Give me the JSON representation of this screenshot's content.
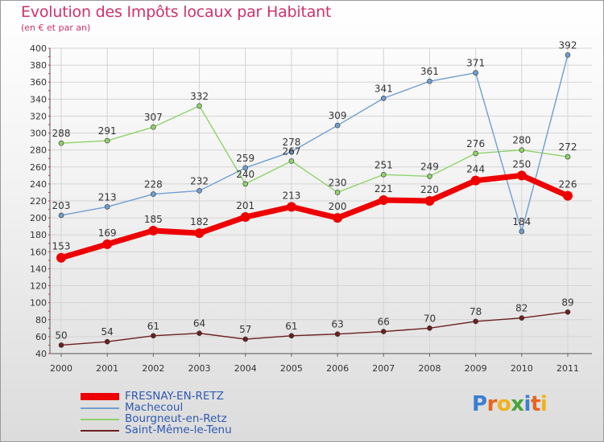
{
  "title": "Evolution des Impôts locaux par Habitant",
  "subtitle": "(en € et par an)",
  "logo": {
    "letters": [
      "P",
      "r",
      "o",
      "x",
      "i",
      "t",
      "i"
    ],
    "colors": [
      "#3a7fd0",
      "#e8641c",
      "#f0b21a",
      "#4aa33a",
      "#3a7fd0",
      "#e8641c",
      "#f0b21a"
    ]
  },
  "chart_data": {
    "type": "line",
    "title": "Evolution des Impôts locaux par Habitant",
    "subtitle": "(en € et par an)",
    "x": [
      "2000",
      "2001",
      "2002",
      "2003",
      "2004",
      "2005",
      "2006",
      "2007",
      "2008",
      "2009",
      "2010",
      "2011"
    ],
    "ylim": [
      40,
      400
    ],
    "yticks": [
      40,
      60,
      80,
      100,
      120,
      140,
      160,
      180,
      200,
      220,
      240,
      260,
      280,
      300,
      320,
      340,
      360,
      380,
      400
    ],
    "grid": true,
    "legend_position": "bottom-left",
    "series": [
      {
        "name": "Saint-Même-le-Tenu",
        "color": "#6b1f1f",
        "values": [
          50,
          54,
          61,
          64,
          57,
          61,
          63,
          66,
          70,
          78,
          82,
          89
        ]
      },
      {
        "name": "Bourgneut-en-Retz",
        "color": "#8fd36a",
        "values": [
          288,
          291,
          307,
          332,
          240,
          267,
          230,
          251,
          249,
          276,
          280,
          272
        ]
      },
      {
        "name": "Machecoul",
        "color": "#6f9ed0",
        "values": [
          203,
          213,
          228,
          232,
          259,
          278,
          309,
          341,
          361,
          371,
          184,
          392
        ]
      },
      {
        "name": "FRESNAY-EN-RETZ",
        "color": "#ee0000",
        "values": [
          153,
          169,
          185,
          182,
          201,
          213,
          200,
          221,
          220,
          244,
          250,
          226
        ]
      }
    ],
    "legend_order": [
      "FRESNAY-EN-RETZ",
      "Machecoul",
      "Bourgneut-en-Retz",
      "Saint-Même-le-Tenu"
    ]
  }
}
